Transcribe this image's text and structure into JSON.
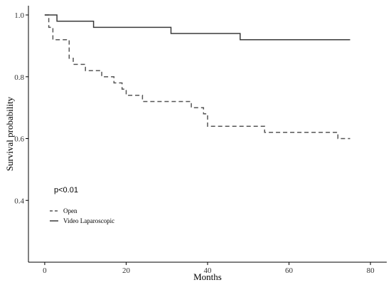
{
  "chart_data": {
    "type": "line",
    "title": "",
    "xlabel": "Months",
    "ylabel": "Survival probability",
    "xlim": [
      -4,
      84
    ],
    "ylim": [
      0.2,
      1.03
    ],
    "x_ticks": [
      0,
      20,
      40,
      60,
      80
    ],
    "y_ticks": [
      0.4,
      0.6,
      0.8,
      1.0
    ],
    "x_tick_labels": [
      "0",
      "20",
      "40",
      "60",
      "80"
    ],
    "y_tick_labels": [
      "0.4",
      "0.6",
      "0.8",
      "1.0"
    ],
    "grid": false,
    "annotation": "p<0.01",
    "legend_position": "lower-left",
    "series": [
      {
        "name": "Open",
        "style": "dashed",
        "color": "#555555",
        "step_x": [
          0,
          1,
          2,
          6,
          7,
          10,
          14,
          17,
          19,
          20,
          24,
          36,
          39,
          40,
          54,
          72,
          75
        ],
        "step_y": [
          1.0,
          0.96,
          0.92,
          0.86,
          0.84,
          0.82,
          0.8,
          0.78,
          0.76,
          0.74,
          0.72,
          0.7,
          0.68,
          0.64,
          0.62,
          0.6,
          0.6
        ]
      },
      {
        "name": "Video Laparoscopic",
        "style": "solid",
        "color": "#3a3a3a",
        "step_x": [
          0,
          3,
          12,
          31,
          48,
          75
        ],
        "step_y": [
          1.0,
          0.98,
          0.96,
          0.94,
          0.92,
          0.92
        ]
      }
    ]
  }
}
